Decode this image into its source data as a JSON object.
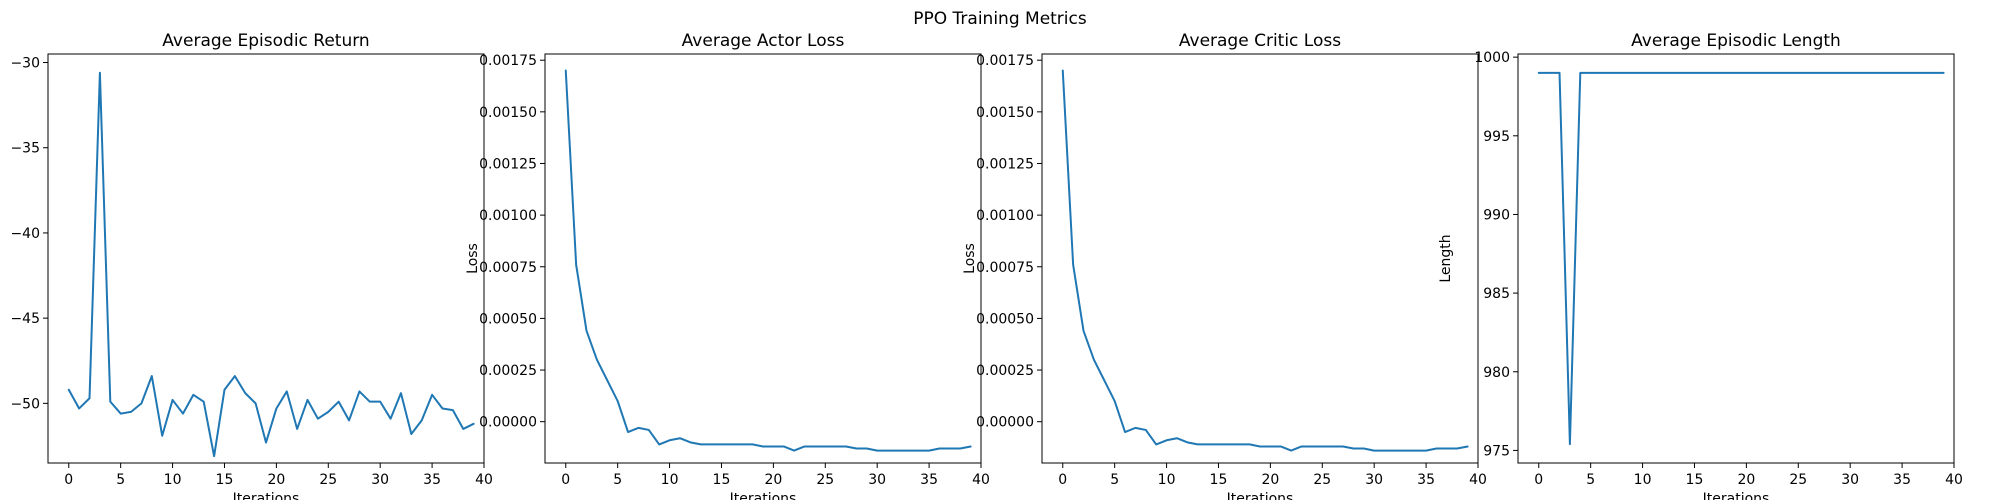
{
  "figure": {
    "title": "PPO Training Metrics"
  },
  "chart_data": [
    {
      "type": "line",
      "title": "Average Episodic Return",
      "xlabel": "Iterations",
      "ylabel": "",
      "color": "#1f77b4",
      "xlim": [
        -2,
        40
      ],
      "ylim": [
        -53.5,
        -29.5
      ],
      "xticks": [
        0,
        5,
        10,
        15,
        20,
        25,
        30,
        35,
        40
      ],
      "yticks": [
        -50,
        -45,
        -40,
        -35,
        -30
      ],
      "ytick_labels": [
        "−50",
        "−45",
        "−40",
        "−35",
        "−30"
      ],
      "x": [
        0,
        1,
        2,
        3,
        4,
        5,
        6,
        7,
        8,
        9,
        10,
        11,
        12,
        13,
        14,
        15,
        16,
        17,
        18,
        19,
        20,
        21,
        22,
        23,
        24,
        25,
        26,
        27,
        28,
        29,
        30,
        31,
        32,
        33,
        34,
        35,
        36,
        37,
        38,
        39
      ],
      "y": [
        -49.2,
        -50.3,
        -49.7,
        -30.6,
        -49.9,
        -50.6,
        -50.5,
        -50.0,
        -48.4,
        -51.9,
        -49.8,
        -50.6,
        -49.5,
        -49.9,
        -53.1,
        -49.2,
        -48.4,
        -49.4,
        -50.0,
        -52.3,
        -50.3,
        -49.3,
        -51.5,
        -49.8,
        -50.9,
        -50.5,
        -49.9,
        -51.0,
        -49.3,
        -49.9,
        -49.9,
        -50.9,
        -49.4,
        -51.8,
        -51.0,
        -49.5,
        -50.3,
        -50.4,
        -51.5,
        -51.2
      ]
    },
    {
      "type": "line",
      "title": "Average Actor Loss",
      "xlabel": "Iterations",
      "ylabel": "Loss",
      "color": "#1f77b4",
      "xlim": [
        -2,
        40
      ],
      "ylim": [
        -0.0002,
        0.00178
      ],
      "xticks": [
        0,
        5,
        10,
        15,
        20,
        25,
        30,
        35,
        40
      ],
      "yticks": [
        0.0,
        0.00025,
        0.0005,
        0.00075,
        0.001,
        0.00125,
        0.0015,
        0.00175
      ],
      "ytick_labels": [
        "0.00000",
        "0.00025",
        "0.00050",
        "0.00075",
        "0.00100",
        "0.00125",
        "0.00150",
        "0.00175"
      ],
      "x": [
        0,
        1,
        2,
        3,
        4,
        5,
        6,
        7,
        8,
        9,
        10,
        11,
        12,
        13,
        14,
        15,
        16,
        17,
        18,
        19,
        20,
        21,
        22,
        23,
        24,
        25,
        26,
        27,
        28,
        29,
        30,
        31,
        32,
        33,
        34,
        35,
        36,
        37,
        38,
        39
      ],
      "y": [
        0.0017,
        0.00076,
        0.00044,
        0.0003,
        0.0002,
        0.0001,
        -5e-05,
        -3e-05,
        -4e-05,
        -0.00011,
        -9e-05,
        -8e-05,
        -0.0001,
        -0.00011,
        -0.00011,
        -0.00011,
        -0.00011,
        -0.00011,
        -0.00011,
        -0.00012,
        -0.00012,
        -0.00012,
        -0.00014,
        -0.00012,
        -0.00012,
        -0.00012,
        -0.00012,
        -0.00012,
        -0.00013,
        -0.00013,
        -0.00014,
        -0.00014,
        -0.00014,
        -0.00014,
        -0.00014,
        -0.00014,
        -0.00013,
        -0.00013,
        -0.00013,
        -0.00012
      ]
    },
    {
      "type": "line",
      "title": "Average Critic Loss",
      "xlabel": "Iterations",
      "ylabel": "Loss",
      "color": "#1f77b4",
      "xlim": [
        -2,
        40
      ],
      "ylim": [
        -0.0002,
        0.00178
      ],
      "xticks": [
        0,
        5,
        10,
        15,
        20,
        25,
        30,
        35,
        40
      ],
      "yticks": [
        0.0,
        0.00025,
        0.0005,
        0.00075,
        0.001,
        0.00125,
        0.0015,
        0.00175
      ],
      "ytick_labels": [
        "0.00000",
        "0.00025",
        "0.00050",
        "0.00075",
        "0.00100",
        "0.00125",
        "0.00150",
        "0.00175"
      ],
      "x": [
        0,
        1,
        2,
        3,
        4,
        5,
        6,
        7,
        8,
        9,
        10,
        11,
        12,
        13,
        14,
        15,
        16,
        17,
        18,
        19,
        20,
        21,
        22,
        23,
        24,
        25,
        26,
        27,
        28,
        29,
        30,
        31,
        32,
        33,
        34,
        35,
        36,
        37,
        38,
        39
      ],
      "y": [
        0.0017,
        0.00076,
        0.00044,
        0.0003,
        0.0002,
        0.0001,
        -5e-05,
        -3e-05,
        -4e-05,
        -0.00011,
        -9e-05,
        -8e-05,
        -0.0001,
        -0.00011,
        -0.00011,
        -0.00011,
        -0.00011,
        -0.00011,
        -0.00011,
        -0.00012,
        -0.00012,
        -0.00012,
        -0.00014,
        -0.00012,
        -0.00012,
        -0.00012,
        -0.00012,
        -0.00012,
        -0.00013,
        -0.00013,
        -0.00014,
        -0.00014,
        -0.00014,
        -0.00014,
        -0.00014,
        -0.00014,
        -0.00013,
        -0.00013,
        -0.00013,
        -0.00012
      ]
    },
    {
      "type": "line",
      "title": "Average Episodic Length",
      "xlabel": "Iterations",
      "ylabel": "Length",
      "color": "#1f77b4",
      "xlim": [
        -2,
        40
      ],
      "ylim": [
        974.2,
        1000.2
      ],
      "xticks": [
        0,
        5,
        10,
        15,
        20,
        25,
        30,
        35,
        40
      ],
      "yticks": [
        975,
        980,
        985,
        990,
        995,
        1000
      ],
      "ytick_labels": [
        "975",
        "980",
        "985",
        "990",
        "995",
        "1000"
      ],
      "x": [
        0,
        1,
        2,
        3,
        4,
        5,
        6,
        7,
        8,
        9,
        10,
        11,
        12,
        13,
        14,
        15,
        16,
        17,
        18,
        19,
        20,
        21,
        22,
        23,
        24,
        25,
        26,
        27,
        28,
        29,
        30,
        31,
        32,
        33,
        34,
        35,
        36,
        37,
        38,
        39
      ],
      "y": [
        999,
        999,
        999,
        975.4,
        999,
        999,
        999,
        999,
        999,
        999,
        999,
        999,
        999,
        999,
        999,
        999,
        999,
        999,
        999,
        999,
        999,
        999,
        999,
        999,
        999,
        999,
        999,
        999,
        999,
        999,
        999,
        999,
        999,
        999,
        999,
        999,
        999,
        999,
        999,
        999
      ]
    }
  ]
}
